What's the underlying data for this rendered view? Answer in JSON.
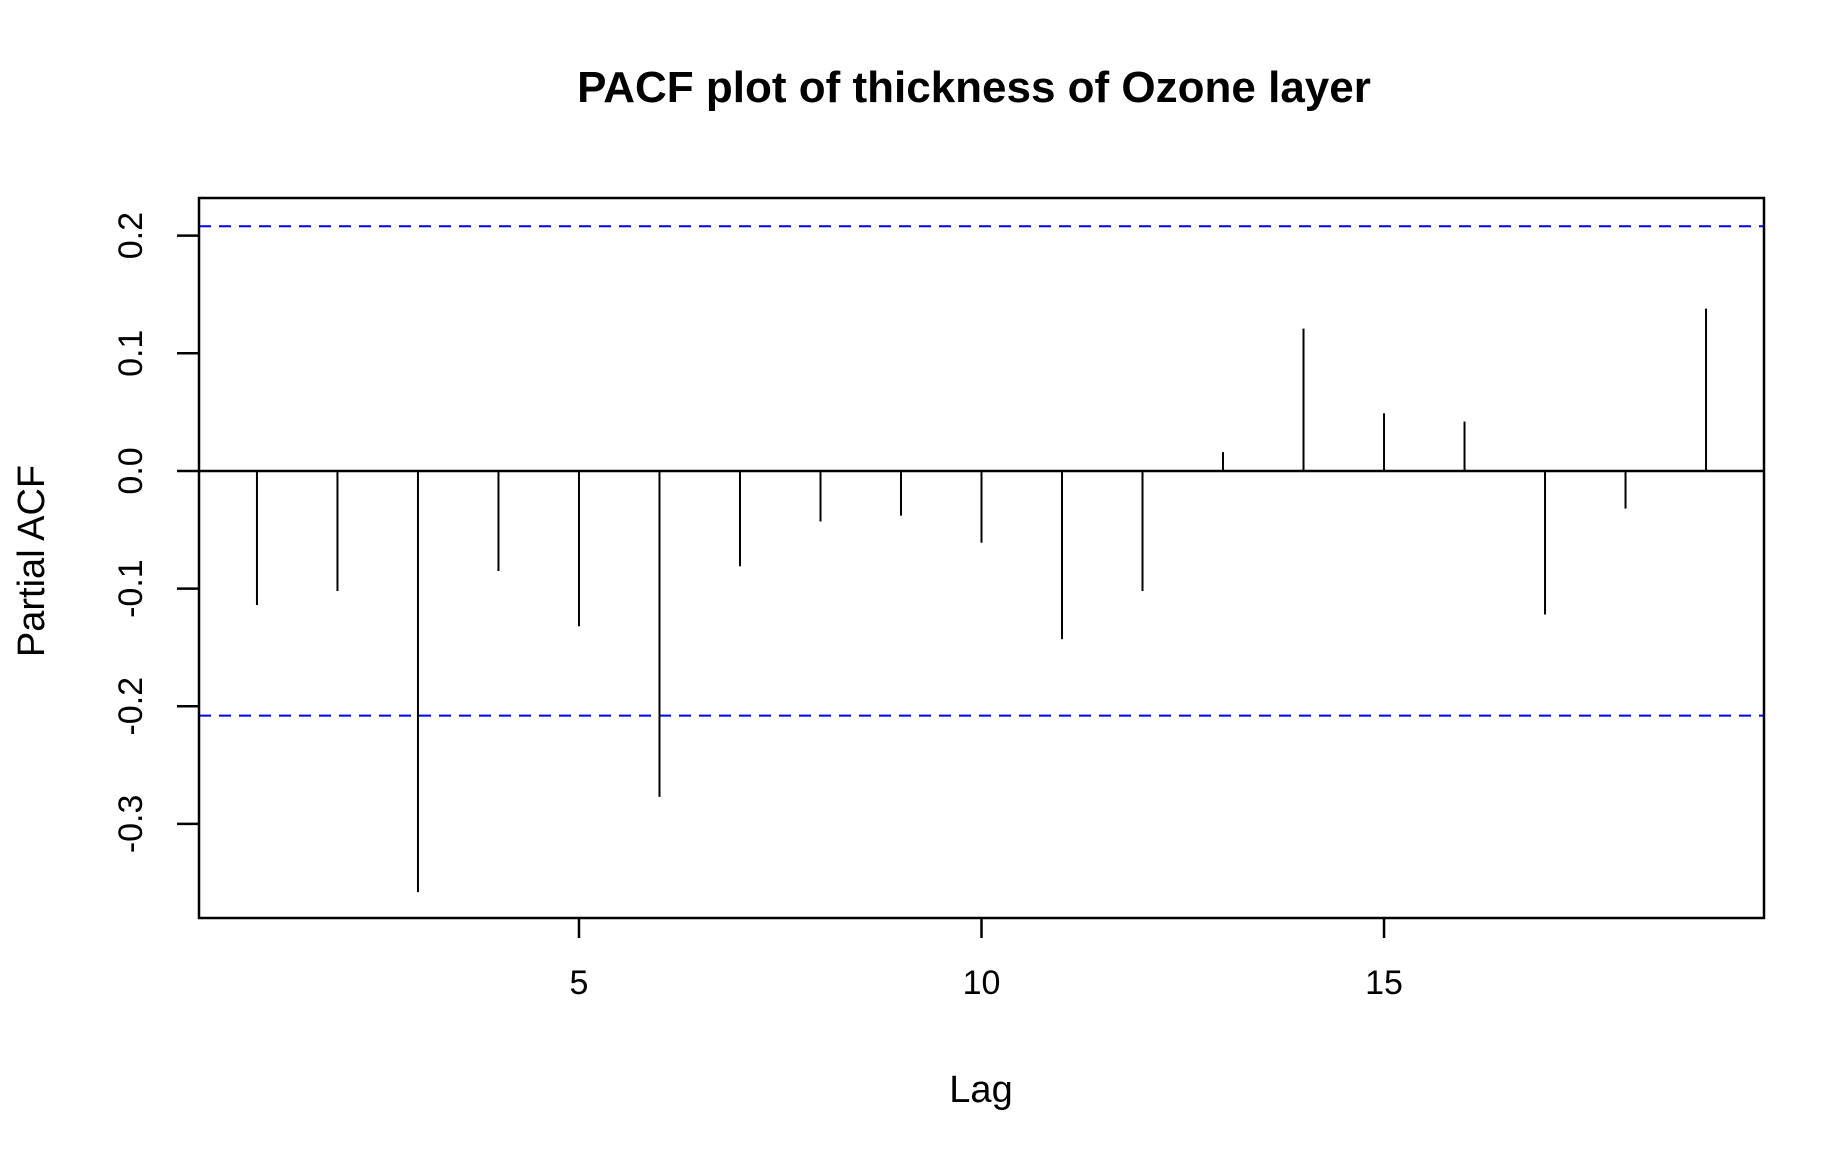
{
  "chart_data": {
    "type": "bar",
    "title": "PACF plot of thickness of Ozone layer",
    "xlabel": "Lag",
    "ylabel": "Partial ACF",
    "x": [
      1,
      2,
      3,
      4,
      5,
      6,
      7,
      8,
      9,
      10,
      11,
      12,
      13,
      14,
      15,
      16,
      17,
      18,
      19
    ],
    "values": [
      -0.114,
      -0.102,
      -0.358,
      -0.085,
      -0.132,
      -0.277,
      -0.081,
      -0.043,
      -0.038,
      -0.061,
      -0.143,
      -0.102,
      0.016,
      0.121,
      0.049,
      0.042,
      -0.122,
      -0.032,
      0.138
    ],
    "xlim": [
      0.28,
      19.72
    ],
    "ylim": [
      -0.38,
      0.232
    ],
    "x_ticks": [
      5,
      10,
      15
    ],
    "y_ticks": [
      -0.3,
      -0.2,
      -0.1,
      0.0,
      0.1,
      0.2
    ],
    "x_tick_labels": [
      "5",
      "10",
      "15"
    ],
    "y_tick_labels": [
      "-0.3",
      "-0.2",
      "-0.1",
      "0.0",
      "0.1",
      "0.2"
    ],
    "confidence_bounds": [
      0.208,
      -0.208
    ],
    "confidence_color": "#0000ff",
    "grid": false,
    "legend": "none"
  }
}
